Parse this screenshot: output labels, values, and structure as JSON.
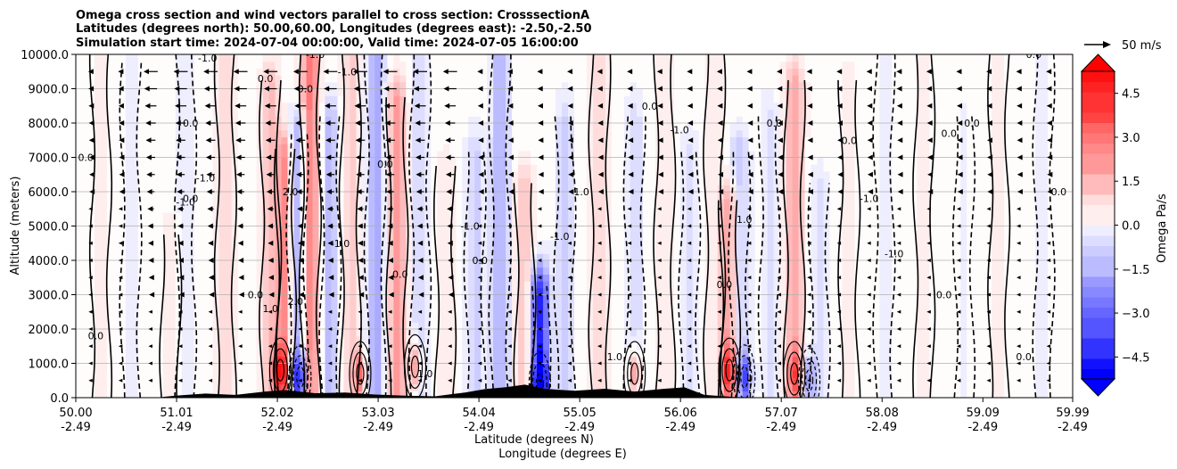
{
  "chart_data": {
    "type": "heatmap",
    "title_lines": [
      "Omega cross section and wind vectors parallel to cross section: CrosssectionA",
      "Latitudes (degrees north): 50.00,60.00, Longitudes (degrees east): -2.50,-2.50",
      "Simulation start time: 2024-07-04 00:00:00, Valid time: 2024-07-05 16:00:00"
    ],
    "xlabel": "Latitude (degrees N)",
    "xlabel2": "Longitude (degrees E)",
    "ylabel": "Altitude (meters)",
    "xlim": [
      50.0,
      59.99
    ],
    "ylim": [
      0,
      10000
    ],
    "x_ticks": [
      {
        "lat": "50.00",
        "lon": "-2.49",
        "v": 50.0
      },
      {
        "lat": "51.01",
        "lon": "-2.49",
        "v": 51.01
      },
      {
        "lat": "52.02",
        "lon": "-2.49",
        "v": 52.02
      },
      {
        "lat": "53.03",
        "lon": "-2.49",
        "v": 53.03
      },
      {
        "lat": "54.04",
        "lon": "-2.49",
        "v": 54.04
      },
      {
        "lat": "55.05",
        "lon": "-2.49",
        "v": 55.05
      },
      {
        "lat": "56.06",
        "lon": "-2.49",
        "v": 56.06
      },
      {
        "lat": "57.07",
        "lon": "-2.49",
        "v": 57.07
      },
      {
        "lat": "58.08",
        "lon": "-2.49",
        "v": 58.08
      },
      {
        "lat": "59.09",
        "lon": "-2.49",
        "v": 59.09
      },
      {
        "lat": "59.99",
        "lon": "-2.49",
        "v": 59.99
      }
    ],
    "y_ticks": [
      {
        "label": "0.0",
        "v": 0
      },
      {
        "label": "1000.0",
        "v": 1000
      },
      {
        "label": "2000.0",
        "v": 2000
      },
      {
        "label": "3000.0",
        "v": 3000
      },
      {
        "label": "4000.0",
        "v": 4000
      },
      {
        "label": "5000.0",
        "v": 5000
      },
      {
        "label": "6000.0",
        "v": 6000
      },
      {
        "label": "7000.0",
        "v": 7000
      },
      {
        "label": "8000.0",
        "v": 8000
      },
      {
        "label": "9000.0",
        "v": 9000
      },
      {
        "label": "10000.0",
        "v": 10000
      }
    ],
    "grid": true,
    "colorbar": {
      "label": "Omega Pa/s",
      "range": [
        -5.25,
        5.25
      ],
      "step": 0.35,
      "extend": "both",
      "ticks": [
        {
          "label": "4.5",
          "v": 4.5
        },
        {
          "label": "3.0",
          "v": 3.0
        },
        {
          "label": "1.5",
          "v": 1.5
        },
        {
          "label": "0.0",
          "v": 0.0
        },
        {
          "label": "−1.5",
          "v": -1.5
        },
        {
          "label": "−3.0",
          "v": -3.0
        },
        {
          "label": "−4.5",
          "v": -4.5
        }
      ]
    },
    "quiver_key": {
      "label": "50 m/s",
      "value_ms": 50
    },
    "omega_bands": [
      {
        "lat": 50.25,
        "top": 10000,
        "peak": 0.4
      },
      {
        "lat": 50.55,
        "top": 9500,
        "peak": -0.3
      },
      {
        "lat": 50.95,
        "top": 4500,
        "peak": 0.6
      },
      {
        "lat": 51.1,
        "top": 10000,
        "peak": -0.5
      },
      {
        "lat": 51.5,
        "top": 10000,
        "peak": 0.8
      },
      {
        "lat": 51.95,
        "top": 9000,
        "peak": 1.3
      },
      {
        "lat": 52.1,
        "top": 7000,
        "peak": 2.5
      },
      {
        "lat": 52.22,
        "top": 7500,
        "peak": -2.2
      },
      {
        "lat": 52.35,
        "top": 10000,
        "peak": 2.8
      },
      {
        "lat": 52.55,
        "top": 8000,
        "peak": -1.4
      },
      {
        "lat": 52.75,
        "top": 10000,
        "peak": 1.0
      },
      {
        "lat": 53.0,
        "top": 10000,
        "peak": -1.8
      },
      {
        "lat": 53.22,
        "top": 8500,
        "peak": 2.2
      },
      {
        "lat": 53.45,
        "top": 10000,
        "peak": -0.8
      },
      {
        "lat": 53.7,
        "top": 6500,
        "peak": 0.5
      },
      {
        "lat": 54.0,
        "top": 7000,
        "peak": -1.0
      },
      {
        "lat": 54.25,
        "top": 10000,
        "peak": -1.6
      },
      {
        "lat": 54.5,
        "top": 6000,
        "peak": 1.2
      },
      {
        "lat": 54.65,
        "top": 3000,
        "peak": -4.5
      },
      {
        "lat": 54.9,
        "top": 8000,
        "peak": -0.9
      },
      {
        "lat": 55.25,
        "top": 10000,
        "peak": 0.9
      },
      {
        "lat": 55.6,
        "top": 8000,
        "peak": -0.8
      },
      {
        "lat": 55.9,
        "top": 10000,
        "peak": 0.4
      },
      {
        "lat": 56.15,
        "top": 7000,
        "peak": -0.6
      },
      {
        "lat": 56.4,
        "top": 10000,
        "peak": 0.3
      },
      {
        "lat": 56.55,
        "top": 5500,
        "peak": 2.0
      },
      {
        "lat": 56.65,
        "top": 7000,
        "peak": -1.2
      },
      {
        "lat": 56.95,
        "top": 8000,
        "peak": -0.7
      },
      {
        "lat": 57.2,
        "top": 9000,
        "peak": 1.8
      },
      {
        "lat": 57.45,
        "top": 6000,
        "peak": -0.6
      },
      {
        "lat": 57.75,
        "top": 9000,
        "peak": 0.4
      },
      {
        "lat": 58.1,
        "top": 10000,
        "peak": -0.3
      },
      {
        "lat": 58.5,
        "top": 10000,
        "peak": 0.35
      },
      {
        "lat": 58.9,
        "top": 8000,
        "peak": -0.25
      },
      {
        "lat": 59.25,
        "top": 10000,
        "peak": 0.3
      },
      {
        "lat": 59.7,
        "top": 10000,
        "peak": -0.25
      }
    ],
    "low_level_cells": [
      {
        "lat": 52.05,
        "alt": 800,
        "peak": 3.5
      },
      {
        "lat": 52.25,
        "alt": 600,
        "peak": -4.0
      },
      {
        "lat": 52.85,
        "alt": 700,
        "peak": 3.0
      },
      {
        "lat": 53.4,
        "alt": 900,
        "peak": 2.5
      },
      {
        "lat": 54.65,
        "alt": 400,
        "peak": -5.0
      },
      {
        "lat": 55.6,
        "alt": 700,
        "peak": 2.8
      },
      {
        "lat": 56.55,
        "alt": 800,
        "peak": 3.5
      },
      {
        "lat": 56.7,
        "alt": 600,
        "peak": -3.5
      },
      {
        "lat": 57.2,
        "alt": 700,
        "peak": 2.5
      },
      {
        "lat": 57.35,
        "alt": 500,
        "peak": -2.2
      }
    ],
    "terrain": [
      {
        "lat": 50.0,
        "alt": 0
      },
      {
        "lat": 50.8,
        "alt": 0
      },
      {
        "lat": 51.0,
        "alt": 60
      },
      {
        "lat": 51.3,
        "alt": 120
      },
      {
        "lat": 51.6,
        "alt": 80
      },
      {
        "lat": 51.9,
        "alt": 180
      },
      {
        "lat": 52.1,
        "alt": 220
      },
      {
        "lat": 52.4,
        "alt": 130
      },
      {
        "lat": 52.7,
        "alt": 150
      },
      {
        "lat": 53.0,
        "alt": 90
      },
      {
        "lat": 53.3,
        "alt": 60
      },
      {
        "lat": 53.6,
        "alt": 40
      },
      {
        "lat": 53.9,
        "alt": 150
      },
      {
        "lat": 54.1,
        "alt": 250
      },
      {
        "lat": 54.3,
        "alt": 300
      },
      {
        "lat": 54.5,
        "alt": 380
      },
      {
        "lat": 54.7,
        "alt": 260
      },
      {
        "lat": 55.0,
        "alt": 200
      },
      {
        "lat": 55.3,
        "alt": 260
      },
      {
        "lat": 55.6,
        "alt": 180
      },
      {
        "lat": 55.9,
        "alt": 260
      },
      {
        "lat": 56.1,
        "alt": 300
      },
      {
        "lat": 56.3,
        "alt": 80
      },
      {
        "lat": 56.6,
        "alt": 20
      },
      {
        "lat": 57.0,
        "alt": 0
      },
      {
        "lat": 59.99,
        "alt": 0
      }
    ],
    "contours": {
      "levels": [
        -1.0,
        0.0,
        1.0,
        2.0
      ],
      "labels": [
        {
          "text": "-1.0",
          "lat": 51.32,
          "alt": 9900
        },
        {
          "text": "-1.0",
          "lat": 52.4,
          "alt": 10000
        },
        {
          "text": "-1.0",
          "lat": 52.72,
          "alt": 9500
        },
        {
          "text": "-1.0",
          "lat": 51.1,
          "alt": 5700
        },
        {
          "text": "-1.0",
          "lat": 51.3,
          "alt": 6400
        },
        {
          "text": "-1.0",
          "lat": 52.65,
          "alt": 4500
        },
        {
          "text": "-1.0",
          "lat": 53.95,
          "alt": 5000
        },
        {
          "text": "-1.0",
          "lat": 54.85,
          "alt": 4700
        },
        {
          "text": "-1.0",
          "lat": 55.05,
          "alt": 6000
        },
        {
          "text": "-1.0",
          "lat": 56.05,
          "alt": 7800
        },
        {
          "text": "-1.0",
          "lat": 57.95,
          "alt": 5800
        },
        {
          "text": "-1.0",
          "lat": 58.2,
          "alt": 4200
        },
        {
          "text": "0.0",
          "lat": 50.1,
          "alt": 7000
        },
        {
          "text": "0.0",
          "lat": 51.15,
          "alt": 8000
        },
        {
          "text": "0.0",
          "lat": 51.15,
          "alt": 5800
        },
        {
          "text": "0.0",
          "lat": 51.9,
          "alt": 9300
        },
        {
          "text": "0.0",
          "lat": 52.3,
          "alt": 9000
        },
        {
          "text": "0.0",
          "lat": 53.1,
          "alt": 6800
        },
        {
          "text": "0.0",
          "lat": 53.25,
          "alt": 3600
        },
        {
          "text": "0.0",
          "lat": 54.05,
          "alt": 4000
        },
        {
          "text": "0.0",
          "lat": 55.75,
          "alt": 8500
        },
        {
          "text": "0.0",
          "lat": 57.0,
          "alt": 8000
        },
        {
          "text": "0.0",
          "lat": 57.75,
          "alt": 7500
        },
        {
          "text": "0.0",
          "lat": 58.75,
          "alt": 7700
        },
        {
          "text": "0.0",
          "lat": 58.98,
          "alt": 8000
        },
        {
          "text": "0.0",
          "lat": 59.6,
          "alt": 10000
        },
        {
          "text": "0.0",
          "lat": 59.85,
          "alt": 6000
        },
        {
          "text": "0.0",
          "lat": 50.2,
          "alt": 1800
        },
        {
          "text": "0.0",
          "lat": 51.8,
          "alt": 3000
        },
        {
          "text": "0.0",
          "lat": 56.5,
          "alt": 3300
        },
        {
          "text": "0.0",
          "lat": 58.7,
          "alt": 3000
        },
        {
          "text": "0.0",
          "lat": 59.5,
          "alt": 1200
        },
        {
          "text": "1.0",
          "lat": 51.95,
          "alt": 2600
        },
        {
          "text": "1.0",
          "lat": 53.5,
          "alt": 700
        },
        {
          "text": "1.0",
          "lat": 55.4,
          "alt": 1200
        },
        {
          "text": "2.0",
          "lat": 52.15,
          "alt": 6000
        },
        {
          "text": "2.0",
          "lat": 52.2,
          "alt": 2800
        },
        {
          "text": "1.0",
          "lat": 56.7,
          "alt": 5200
        }
      ]
    },
    "wind_vectors": {
      "direction": "westward (negative, toward lower latitude) aloft, weak near surface",
      "profile": [
        {
          "alt": 9500,
          "u_ms": -22
        },
        {
          "alt": 9000,
          "u_ms": -20
        },
        {
          "alt": 8500,
          "u_ms": -18
        },
        {
          "alt": 8000,
          "u_ms": -16
        },
        {
          "alt": 7500,
          "u_ms": -15
        },
        {
          "alt": 7000,
          "u_ms": -14
        },
        {
          "alt": 6500,
          "u_ms": -13
        },
        {
          "alt": 6000,
          "u_ms": -12
        },
        {
          "alt": 5500,
          "u_ms": -10
        },
        {
          "alt": 5000,
          "u_ms": -9
        },
        {
          "alt": 4500,
          "u_ms": -8
        },
        {
          "alt": 4000,
          "u_ms": -7
        },
        {
          "alt": 3500,
          "u_ms": -6
        },
        {
          "alt": 3000,
          "u_ms": -5
        },
        {
          "alt": 2500,
          "u_ms": -4
        },
        {
          "alt": 2000,
          "u_ms": -3
        },
        {
          "alt": 1500,
          "u_ms": -2
        },
        {
          "alt": 1000,
          "u_ms": -1.5
        },
        {
          "alt": 500,
          "u_ms": -1
        }
      ],
      "lat_spacing": 0.3,
      "strong_region_lat": [
        50.5,
        53.8
      ]
    }
  }
}
